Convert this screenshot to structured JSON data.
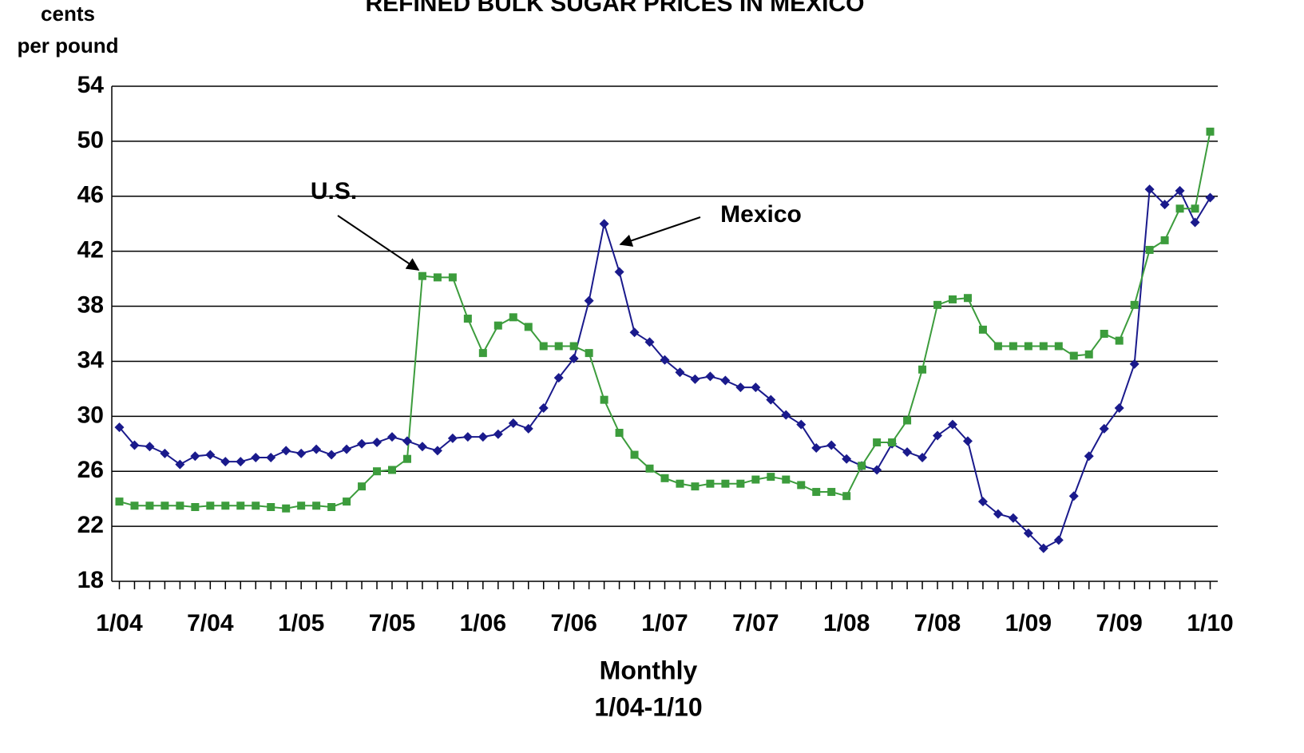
{
  "chart_data": {
    "type": "line",
    "title": "REFINED BULK SUGAR PRICES IN MEXICO",
    "y_label": [
      "cents",
      "per pound"
    ],
    "x_label": [
      "Monthly",
      "1/04-1/10"
    ],
    "annotations": [
      "U.S.",
      "Mexico"
    ],
    "categories": [
      "1/04",
      null,
      null,
      null,
      null,
      null,
      "7/04",
      null,
      null,
      null,
      null,
      null,
      "1/05",
      null,
      null,
      null,
      null,
      null,
      "7/05",
      null,
      null,
      null,
      null,
      null,
      "1/06",
      null,
      null,
      null,
      null,
      null,
      "7/06",
      null,
      null,
      null,
      null,
      null,
      "1/07",
      null,
      null,
      null,
      null,
      null,
      "7/07",
      null,
      null,
      null,
      null,
      null,
      "1/08",
      null,
      null,
      null,
      null,
      null,
      "7/08",
      null,
      null,
      null,
      null,
      null,
      "1/09",
      null,
      null,
      null,
      null,
      null,
      "7/09",
      null,
      null,
      null,
      null,
      null,
      "1/10"
    ],
    "series": [
      {
        "name": "Mexico",
        "color": "#1a1a8c",
        "marker": "diamond",
        "values": [
          29.2,
          27.9,
          27.8,
          27.3,
          26.5,
          27.1,
          27.2,
          26.7,
          26.7,
          27.0,
          27.0,
          27.5,
          27.3,
          27.6,
          27.2,
          27.6,
          28.0,
          28.1,
          28.5,
          28.2,
          27.8,
          27.5,
          28.4,
          28.5,
          28.5,
          28.7,
          29.5,
          29.1,
          30.6,
          32.8,
          34.2,
          38.4,
          44.0,
          40.5,
          36.1,
          35.4,
          34.1,
          33.2,
          32.7,
          32.9,
          32.6,
          32.1,
          32.1,
          31.2,
          30.1,
          29.4,
          27.7,
          27.9,
          26.9,
          26.4,
          26.1,
          28.0,
          27.4,
          27.0,
          28.6,
          29.4,
          28.2,
          23.8,
          22.9,
          22.6,
          21.5,
          20.4,
          21.0,
          24.2,
          27.1,
          29.1,
          30.6,
          33.8,
          46.5,
          45.4,
          46.4,
          44.1,
          45.9
        ]
      },
      {
        "name": "U.S.",
        "color": "#3c9c3c",
        "marker": "square",
        "values": [
          23.8,
          23.5,
          23.5,
          23.5,
          23.5,
          23.4,
          23.5,
          23.5,
          23.5,
          23.5,
          23.4,
          23.3,
          23.5,
          23.5,
          23.4,
          23.8,
          24.9,
          26.0,
          26.1,
          26.9,
          40.2,
          40.1,
          40.1,
          37.1,
          34.6,
          36.6,
          37.2,
          36.5,
          35.1,
          35.1,
          35.1,
          34.6,
          31.2,
          28.8,
          27.2,
          26.2,
          25.5,
          25.1,
          24.9,
          25.1,
          25.1,
          25.1,
          25.4,
          25.6,
          25.4,
          25.0,
          24.5,
          24.5,
          24.2,
          26.4,
          28.1,
          28.1,
          29.7,
          33.4,
          38.1,
          38.5,
          38.6,
          36.3,
          35.1,
          35.1,
          35.1,
          35.1,
          35.1,
          34.4,
          34.5,
          36.0,
          35.5,
          38.1,
          42.1,
          42.8,
          45.1,
          45.1,
          50.7
        ]
      }
    ],
    "ylim": [
      18,
      54
    ],
    "yticks": [
      18,
      22,
      26,
      30,
      34,
      38,
      42,
      46,
      50,
      54
    ],
    "grid": true
  }
}
